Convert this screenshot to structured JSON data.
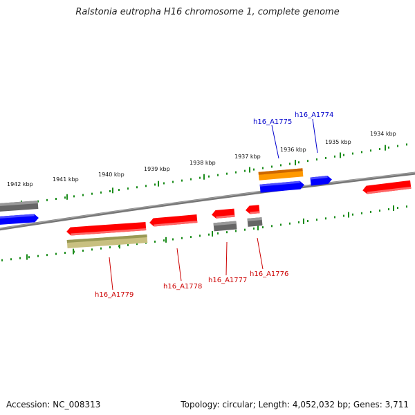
{
  "title": "Ralstonia eutropha H16 chromosome 1, complete genome",
  "footer": {
    "accession": "Accession: NC_008313",
    "topology": "Topology: circular; Length: 4,052,032 bp; Genes: 3,711"
  },
  "ticks": [
    "1942 kbp",
    "1941 kbp",
    "1940 kbp",
    "1939 kbp",
    "1938 kbp",
    "1937 kbp",
    "1936 kbp",
    "1935 kbp",
    "1934 kbp"
  ],
  "gene_labels": {
    "h16_A1774": "h16_A1774",
    "h16_A1775": "h16_A1775",
    "h16_A1776": "h16_A1776",
    "h16_A1777": "h16_A1777",
    "h16_A1778": "h16_A1778",
    "h16_A1779": "h16_A1779"
  },
  "colors": {
    "cds": "#ff0000",
    "gene": "#666666",
    "blue": "#0000ff",
    "orange": "#ff9900",
    "misc": "#cccc88",
    "tick": "#1a8c1a",
    "forward_label": "#0000cc",
    "reverse_label": "#cc0000"
  }
}
